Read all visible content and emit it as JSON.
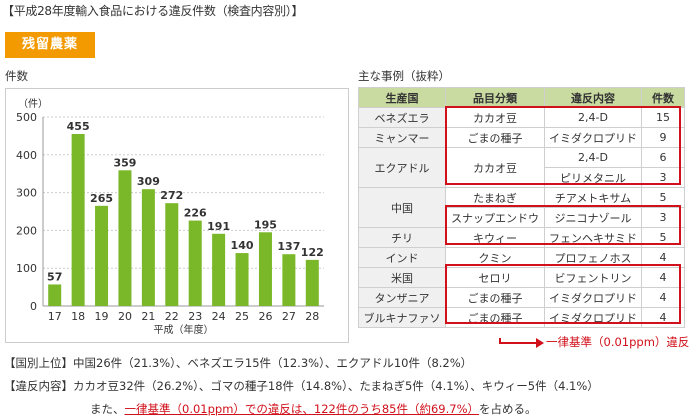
{
  "page_title": "【平成28年度輸入食品における違反件数（検査内容別）】",
  "category_badge": "残留農薬",
  "chart_label": "件数",
  "cases_label": "主な事例（抜粋）",
  "chart_data": {
    "type": "bar",
    "title": "",
    "xlabel": "平成（年度）",
    "ylabel": "（件）",
    "ylim": [
      0,
      500
    ],
    "yticks": [
      0,
      100,
      200,
      300,
      400,
      500
    ],
    "categories": [
      "17",
      "18",
      "19",
      "20",
      "21",
      "22",
      "23",
      "24",
      "25",
      "26",
      "27",
      "28"
    ],
    "values": [
      57,
      455,
      265,
      359,
      309,
      272,
      226,
      191,
      140,
      195,
      137,
      122
    ],
    "grid": true,
    "bar_color": "#7ab729"
  },
  "table": {
    "headers": [
      "生産国",
      "品目分類",
      "違反内容",
      "件数"
    ],
    "rows": [
      {
        "country": "ベネズエラ",
        "item": "カカオ豆",
        "violation": "2,4-D",
        "count": "15"
      },
      {
        "country": "ミャンマー",
        "item": "ごまの種子",
        "violation": "イミダクロプリド",
        "count": "9"
      },
      {
        "country": "エクアドル",
        "item": "カカオ豆",
        "violation": "2,4-D",
        "count": "6"
      },
      {
        "country": "",
        "item": "",
        "violation": "ピリメタニル",
        "count": "3"
      },
      {
        "country": "中国",
        "item": "たまねぎ",
        "violation": "チアメトキサム",
        "count": "5"
      },
      {
        "country": "",
        "item": "スナップエンドウ",
        "violation": "ジニコナゾール",
        "count": "3"
      },
      {
        "country": "チリ",
        "item": "キウィー",
        "violation": "フェンヘキサミド",
        "count": "5"
      },
      {
        "country": "インド",
        "item": "クミン",
        "violation": "プロフェノホス",
        "count": "4"
      },
      {
        "country": "米国",
        "item": "セロリ",
        "violation": "ビフェントリン",
        "count": "4"
      },
      {
        "country": "タンザニア",
        "item": "ごまの種子",
        "violation": "イミダクロプリド",
        "count": "4"
      },
      {
        "country": "ブルキナファソ",
        "item": "ごまの種子",
        "violation": "イミダクロプリド",
        "count": "4"
      }
    ]
  },
  "standard_label": "一律基準（0.01ppm）違反",
  "summary": {
    "line1": "【国別上位】中国26件（21.3%）、ベネズエラ15件（12.3%）、エクアドル10件（8.2%）",
    "line2": "【違反内容】カカオ豆32件（26.2%）、ゴマの種子18件（14.8%）、たまねぎ5件（4.1%）、キウィー5件（4.1%）",
    "line3_prefix": "また、",
    "line3_underlined": "一律基準（0.01ppm）での違反は、122件のうち85件（約69.7%）",
    "line3_suffix": "を占める。"
  }
}
